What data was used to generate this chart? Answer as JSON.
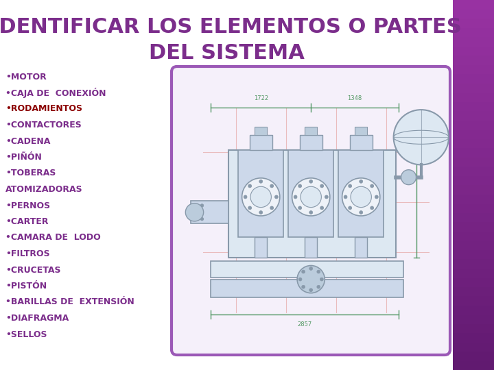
{
  "title_line1": "IDENTIFICAR LOS ELEMENTOS O PARTES",
  "title_line2": "DEL SISTEMA",
  "title_color": "#7B2D8B",
  "title_fontsize": 22,
  "bg_color": "#ffffff",
  "right_bar_colors": [
    "#9B3BAB",
    "#7B2D8B",
    "#5A1060",
    "#3A0040"
  ],
  "bullet_items": [
    {
      "text": "•MOTOR",
      "bold": true,
      "color": "#7B2D8B"
    },
    {
      "text": "•CAJA DE  CONEXIÓN",
      "bold": true,
      "color": "#7B2D8B"
    },
    {
      "text": "•RODAMIENTOS",
      "bold": true,
      "color": "#8B0000"
    },
    {
      "text": "•CONTACTORES",
      "bold": true,
      "color": "#7B2D8B"
    },
    {
      "text": "•CADENA",
      "bold": true,
      "color": "#7B2D8B"
    },
    {
      "text": "•PIÑÓN",
      "bold": true,
      "color": "#7B2D8B"
    },
    {
      "text": "•TOBERAS",
      "bold": true,
      "color": "#7B2D8B"
    },
    {
      "text": "ATOMIZADORAS",
      "bold": true,
      "color": "#7B2D8B"
    },
    {
      "text": "•PERNOS",
      "bold": true,
      "color": "#7B2D8B"
    },
    {
      "text": "•CARTER",
      "bold": true,
      "color": "#7B2D8B"
    },
    {
      "text": "•CAMARA DE  LODO",
      "bold": true,
      "color": "#7B2D8B"
    },
    {
      "text": "•FILTROS",
      "bold": true,
      "color": "#7B2D8B"
    },
    {
      "text": "•CRUCETAS",
      "bold": true,
      "color": "#7B2D8B"
    },
    {
      "text": "•PISTÓN",
      "bold": true,
      "color": "#7B2D8B"
    },
    {
      "text": "•BARILLAS DE  EXTENSIÓN",
      "bold": true,
      "color": "#7B2D8B"
    },
    {
      "text": "•DIAFRAGMA",
      "bold": true,
      "color": "#7B2D8B"
    },
    {
      "text": "•SELLOS",
      "bold": true,
      "color": "#7B2D8B"
    }
  ],
  "bullet_fontsize": 9.0,
  "image_border_color": "#9B59B6",
  "image_bg_color": "#F5F0FA",
  "draw_color": "#8899aa",
  "green_color": "#559966"
}
